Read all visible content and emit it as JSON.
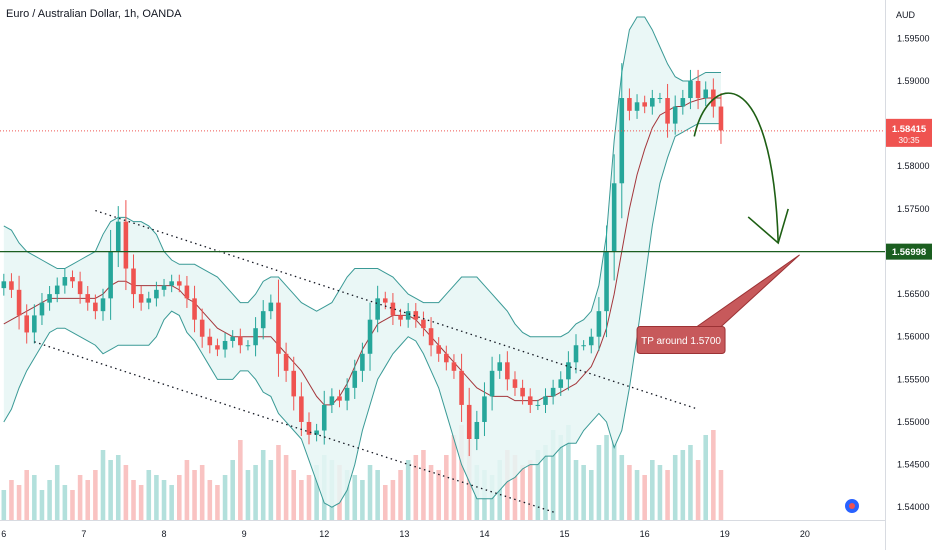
{
  "header": {
    "title": "Euro / Australian Dollar, 1h, OANDA"
  },
  "chart_data": {
    "type": "candlestick",
    "title": "Euro / Australian Dollar, 1h, OANDA",
    "currency_label": "AUD",
    "ylim": [
      1.5385,
      1.5995
    ],
    "y_ticks": [
      1.595,
      1.59,
      1.585,
      1.58,
      1.575,
      1.57,
      1.565,
      1.56,
      1.555,
      1.55,
      1.545,
      1.54
    ],
    "y_tick_labels": [
      "1.59500",
      "1.59000",
      "1.58500",
      "1.58000",
      "1.57500",
      "1.57000",
      "1.56500",
      "1.56000",
      "1.55500",
      "1.55000",
      "1.54500",
      "1.54000"
    ],
    "x_ticks": [
      {
        "label": "6",
        "x": 0.5
      },
      {
        "label": "7",
        "x": 11.0
      },
      {
        "label": "8",
        "x": 21.5
      },
      {
        "label": "9",
        "x": 32.0
      },
      {
        "label": "12",
        "x": 42.5
      },
      {
        "label": "13",
        "x": 53.0
      },
      {
        "label": "14",
        "x": 63.5
      },
      {
        "label": "15",
        "x": 74.0
      },
      {
        "label": "16",
        "x": 84.5
      },
      {
        "label": "19",
        "x": 95.0
      },
      {
        "label": "20",
        "x": 105.5
      }
    ],
    "x_range": [
      0,
      116
    ],
    "closes": [
      1.5665,
      1.5655,
      1.5625,
      1.5605,
      1.5625,
      1.564,
      1.565,
      1.566,
      1.567,
      1.5665,
      1.565,
      1.564,
      1.563,
      1.5645,
      1.57,
      1.5735,
      1.568,
      1.565,
      1.564,
      1.5645,
      1.5655,
      1.566,
      1.5665,
      1.566,
      1.5645,
      1.562,
      1.56,
      1.559,
      1.5585,
      1.5595,
      1.56,
      1.559,
      1.559,
      1.561,
      1.563,
      1.564,
      1.558,
      1.556,
      1.553,
      1.55,
      1.5485,
      1.549,
      1.552,
      1.553,
      1.5525,
      1.554,
      1.556,
      1.558,
      1.562,
      1.5645,
      1.564,
      1.5625,
      1.562,
      1.563,
      1.562,
      1.561,
      1.559,
      1.558,
      1.557,
      1.556,
      1.552,
      1.548,
      1.55,
      1.553,
      1.556,
      1.557,
      1.555,
      1.554,
      1.553,
      1.552,
      1.552,
      1.553,
      1.554,
      1.555,
      1.557,
      1.559,
      1.559,
      1.56,
      1.563,
      1.57,
      1.578,
      1.588,
      1.5865,
      1.5875,
      1.587,
      1.588,
      1.588,
      1.585,
      1.587,
      1.588,
      1.59,
      1.588,
      1.589,
      1.587,
      1.5842
    ],
    "basis": [
      1.5615,
      1.562,
      1.5625,
      1.563,
      1.5635,
      1.564,
      1.5645,
      1.5645,
      1.5645,
      1.5645,
      1.5645,
      1.5645,
      1.5645,
      1.565,
      1.566,
      1.5665,
      1.5665,
      1.566,
      1.566,
      1.566,
      1.566,
      1.566,
      1.566,
      1.5655,
      1.5645,
      1.564,
      1.563,
      1.562,
      1.561,
      1.5605,
      1.56,
      1.56,
      1.56,
      1.56,
      1.56,
      1.56,
      1.559,
      1.558,
      1.557,
      1.556,
      1.5545,
      1.553,
      1.552,
      1.552,
      1.553,
      1.5545,
      1.5565,
      1.5585,
      1.56,
      1.5615,
      1.562,
      1.5625,
      1.5625,
      1.5625,
      1.562,
      1.561,
      1.56,
      1.559,
      1.558,
      1.557,
      1.556,
      1.555,
      1.554,
      1.5535,
      1.553,
      1.553,
      1.553,
      1.5525,
      1.5525,
      1.5525,
      1.5525,
      1.553,
      1.553,
      1.5535,
      1.554,
      1.5545,
      1.5555,
      1.5565,
      1.5585,
      1.561,
      1.565,
      1.57,
      1.575,
      1.579,
      1.582,
      1.5845,
      1.586,
      1.5865,
      1.587,
      1.587,
      1.5875,
      1.5878,
      1.588,
      1.588,
      1.588
    ],
    "upper": [
      1.573,
      1.5725,
      1.571,
      1.57,
      1.5695,
      1.569,
      1.5685,
      1.568,
      1.568,
      1.5685,
      1.569,
      1.5695,
      1.57,
      1.572,
      1.5735,
      1.574,
      1.574,
      1.5735,
      1.5735,
      1.573,
      1.572,
      1.57,
      1.569,
      1.5685,
      1.5685,
      1.5685,
      1.568,
      1.5675,
      1.567,
      1.566,
      1.565,
      1.564,
      1.564,
      1.565,
      1.5665,
      1.567,
      1.567,
      1.566,
      1.565,
      1.564,
      1.5635,
      1.563,
      1.5635,
      1.564,
      1.5655,
      1.567,
      1.568,
      1.568,
      1.568,
      1.568,
      1.5675,
      1.567,
      1.566,
      1.565,
      1.5645,
      1.564,
      1.564,
      1.564,
      1.565,
      1.566,
      1.567,
      1.567,
      1.567,
      1.566,
      1.565,
      1.564,
      1.563,
      1.5615,
      1.5605,
      1.56,
      1.56,
      1.56,
      1.56,
      1.56,
      1.5605,
      1.5615,
      1.562,
      1.563,
      1.566,
      1.572,
      1.583,
      1.591,
      1.596,
      1.5975,
      1.5975,
      1.596,
      1.594,
      1.592,
      1.5905,
      1.59,
      1.59,
      1.5905,
      1.591,
      1.591,
      1.591
    ],
    "lower": [
      1.55,
      1.5515,
      1.554,
      1.556,
      1.5575,
      1.559,
      1.5605,
      1.561,
      1.561,
      1.5605,
      1.56,
      1.5595,
      1.559,
      1.558,
      1.5585,
      1.559,
      1.559,
      1.559,
      1.559,
      1.559,
      1.56,
      1.562,
      1.563,
      1.5625,
      1.5605,
      1.5595,
      1.558,
      1.5565,
      1.555,
      1.555,
      1.555,
      1.556,
      1.556,
      1.555,
      1.5535,
      1.553,
      1.551,
      1.55,
      1.549,
      1.548,
      1.5455,
      1.543,
      1.5405,
      1.54,
      1.5405,
      1.542,
      1.545,
      1.549,
      1.552,
      1.555,
      1.5565,
      1.558,
      1.559,
      1.56,
      1.5595,
      1.558,
      1.556,
      1.554,
      1.551,
      1.548,
      1.545,
      1.543,
      1.541,
      1.541,
      1.541,
      1.542,
      1.543,
      1.5435,
      1.5445,
      1.545,
      1.545,
      1.546,
      1.546,
      1.547,
      1.5475,
      1.5475,
      1.549,
      1.55,
      1.551,
      1.55,
      1.547,
      1.549,
      1.554,
      1.56,
      1.5665,
      1.573,
      1.578,
      1.581,
      1.5835,
      1.584,
      1.5845,
      1.585,
      1.585,
      1.585,
      1.585
    ],
    "volumes": [
      0.3,
      0.4,
      0.35,
      0.5,
      0.45,
      0.3,
      0.4,
      0.55,
      0.35,
      0.3,
      0.45,
      0.4,
      0.5,
      0.7,
      0.6,
      0.65,
      0.55,
      0.4,
      0.35,
      0.5,
      0.45,
      0.4,
      0.35,
      0.45,
      0.6,
      0.5,
      0.55,
      0.4,
      0.35,
      0.45,
      0.6,
      0.8,
      0.5,
      0.55,
      0.7,
      0.6,
      0.75,
      0.65,
      0.5,
      0.4,
      0.45,
      0.55,
      0.65,
      0.6,
      0.55,
      0.5,
      0.45,
      0.4,
      0.55,
      0.5,
      0.35,
      0.4,
      0.5,
      0.6,
      0.65,
      0.7,
      0.55,
      0.5,
      0.65,
      0.85,
      0.95,
      0.8,
      0.55,
      0.5,
      0.45,
      0.6,
      0.7,
      0.65,
      0.55,
      0.6,
      0.7,
      0.75,
      0.9,
      0.85,
      0.95,
      0.6,
      0.55,
      0.5,
      0.75,
      0.85,
      0.8,
      0.65,
      0.55,
      0.5,
      0.45,
      0.6,
      0.55,
      0.5,
      0.65,
      0.7,
      0.75,
      0.6,
      0.85,
      0.9,
      0.5
    ],
    "channel_upper": [
      {
        "x": 12.5,
        "y": 1.5748
      },
      {
        "x": 91.5,
        "y": 1.5515
      }
    ],
    "channel_lower": [
      {
        "x": 4.5,
        "y": 1.5594
      },
      {
        "x": 73.0,
        "y": 1.5393
      }
    ],
    "support_level": 1.56998,
    "current_price": 1.58415,
    "labels": {
      "support_price": "1.56998",
      "current_price": "1.58415",
      "countdown": "30:35",
      "tp_callout": "TP around 1.5700"
    },
    "colors": {
      "up": "#26a69a",
      "down": "#ef5350",
      "band": "#3a9a96",
      "band_fill": "#e6f6f5",
      "basis": "#a4373c",
      "support": "#1b5e20",
      "arrow": "#1e5f14",
      "current": "#ef5350",
      "callout": "#c7595b",
      "callout_border": "#9c3235"
    }
  }
}
